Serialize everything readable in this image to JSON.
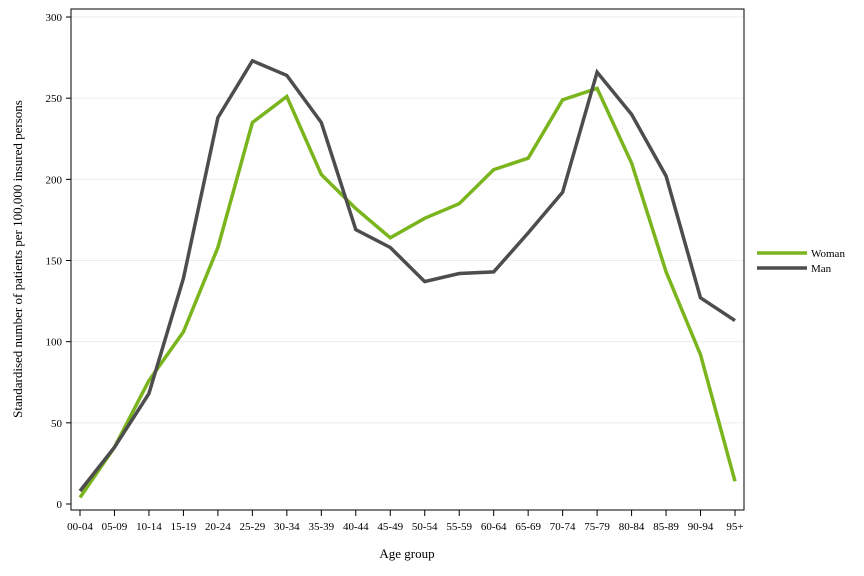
{
  "chart_data": {
    "type": "line",
    "title": "",
    "xlabel": "Age group",
    "ylabel": "Standardised number of patients per 100,000 insured persons",
    "categories": [
      "00-04",
      "05-09",
      "10-14",
      "15-19",
      "20-24",
      "25-29",
      "30-34",
      "35-39",
      "40-44",
      "45-49",
      "50-54",
      "55-59",
      "60-64",
      "65-69",
      "70-74",
      "75-79",
      "80-84",
      "85-89",
      "90-94",
      "95+"
    ],
    "ylim": [
      0,
      300
    ],
    "yticks": [
      0,
      50,
      100,
      150,
      200,
      250,
      300
    ],
    "grid": true,
    "legend_position": "right",
    "series": [
      {
        "name": "Woman",
        "color": "#7ab51d",
        "values": [
          4,
          35,
          76,
          106,
          158,
          235,
          251,
          203,
          182,
          164,
          176,
          185,
          206,
          213,
          249,
          256,
          210,
          143,
          92,
          14
        ]
      },
      {
        "name": "Man",
        "color": "#4d4d4d",
        "values": [
          8,
          35,
          68,
          139,
          238,
          273,
          264,
          235,
          169,
          158,
          137,
          142,
          143,
          167,
          192,
          266,
          240,
          202,
          127,
          113
        ]
      }
    ]
  }
}
